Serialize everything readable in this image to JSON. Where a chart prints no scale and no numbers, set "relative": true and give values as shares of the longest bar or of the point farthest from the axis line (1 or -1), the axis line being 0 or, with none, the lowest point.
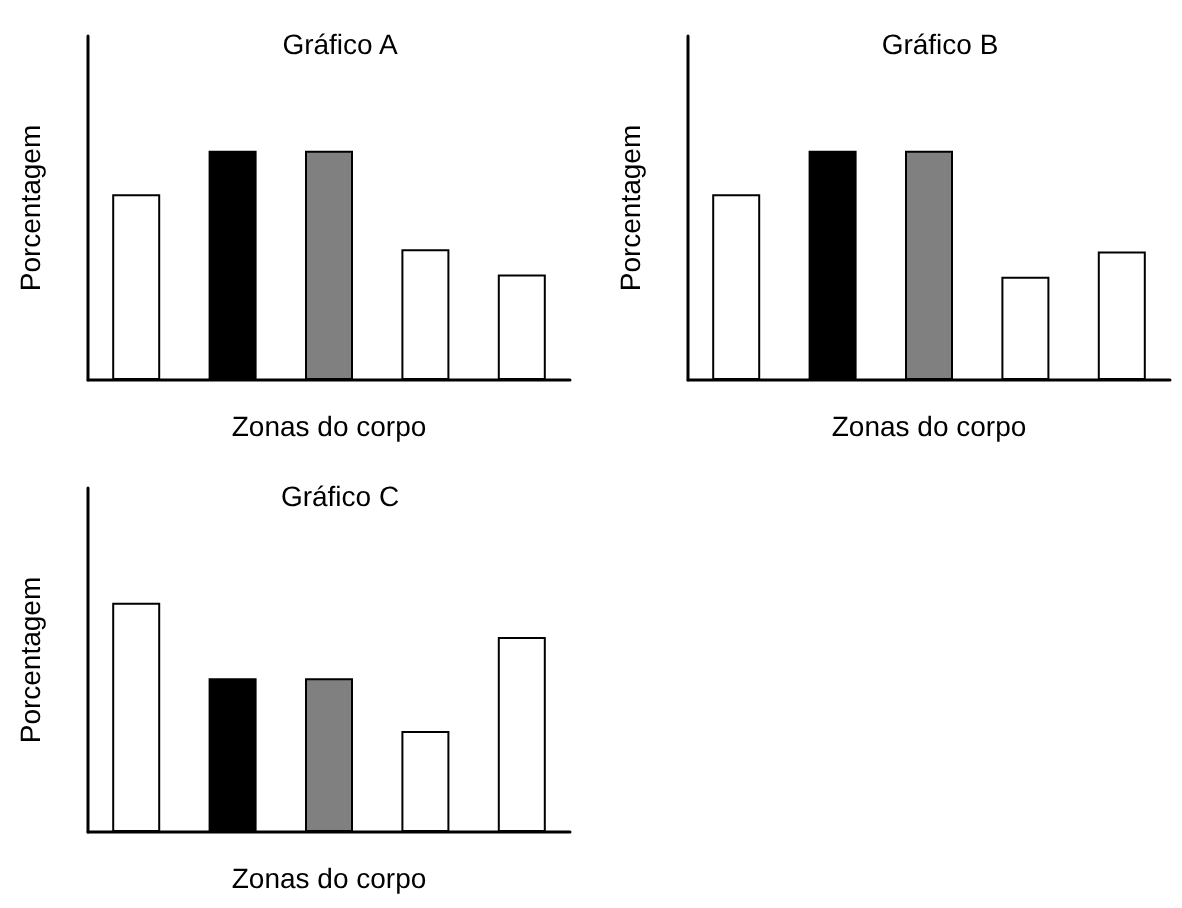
{
  "chart_data": [
    {
      "type": "bar",
      "title": "Gráfico A",
      "xlabel": "Zonas do corpo",
      "ylabel": "Porcentagem",
      "relative": true,
      "categories": [
        null,
        null,
        null,
        null,
        null
      ],
      "values": [
        0.81,
        1,
        1,
        0.57,
        0.46
      ],
      "colors": [
        "#ffffff",
        "#000000",
        "#808080",
        "#ffffff",
        "#ffffff"
      ]
    },
    {
      "type": "bar",
      "title": "Gráfico B",
      "xlabel": "Zonas do corpo",
      "ylabel": "Porcentagem",
      "relative": true,
      "categories": [
        null,
        null,
        null,
        null,
        null
      ],
      "values": [
        0.81,
        1,
        1,
        0.45,
        0.56
      ],
      "colors": [
        "#ffffff",
        "#000000",
        "#808080",
        "#ffffff",
        "#ffffff"
      ]
    },
    {
      "type": "bar",
      "title": "Gráfico C",
      "xlabel": "Zonas do corpo",
      "ylabel": "Porcentagem",
      "relative": true,
      "categories": [
        null,
        null,
        null,
        null,
        null
      ],
      "values": [
        1,
        0.67,
        0.67,
        0.44,
        0.85
      ],
      "colors": [
        "#ffffff",
        "#000000",
        "#808080",
        "#ffffff",
        "#ffffff"
      ]
    }
  ]
}
